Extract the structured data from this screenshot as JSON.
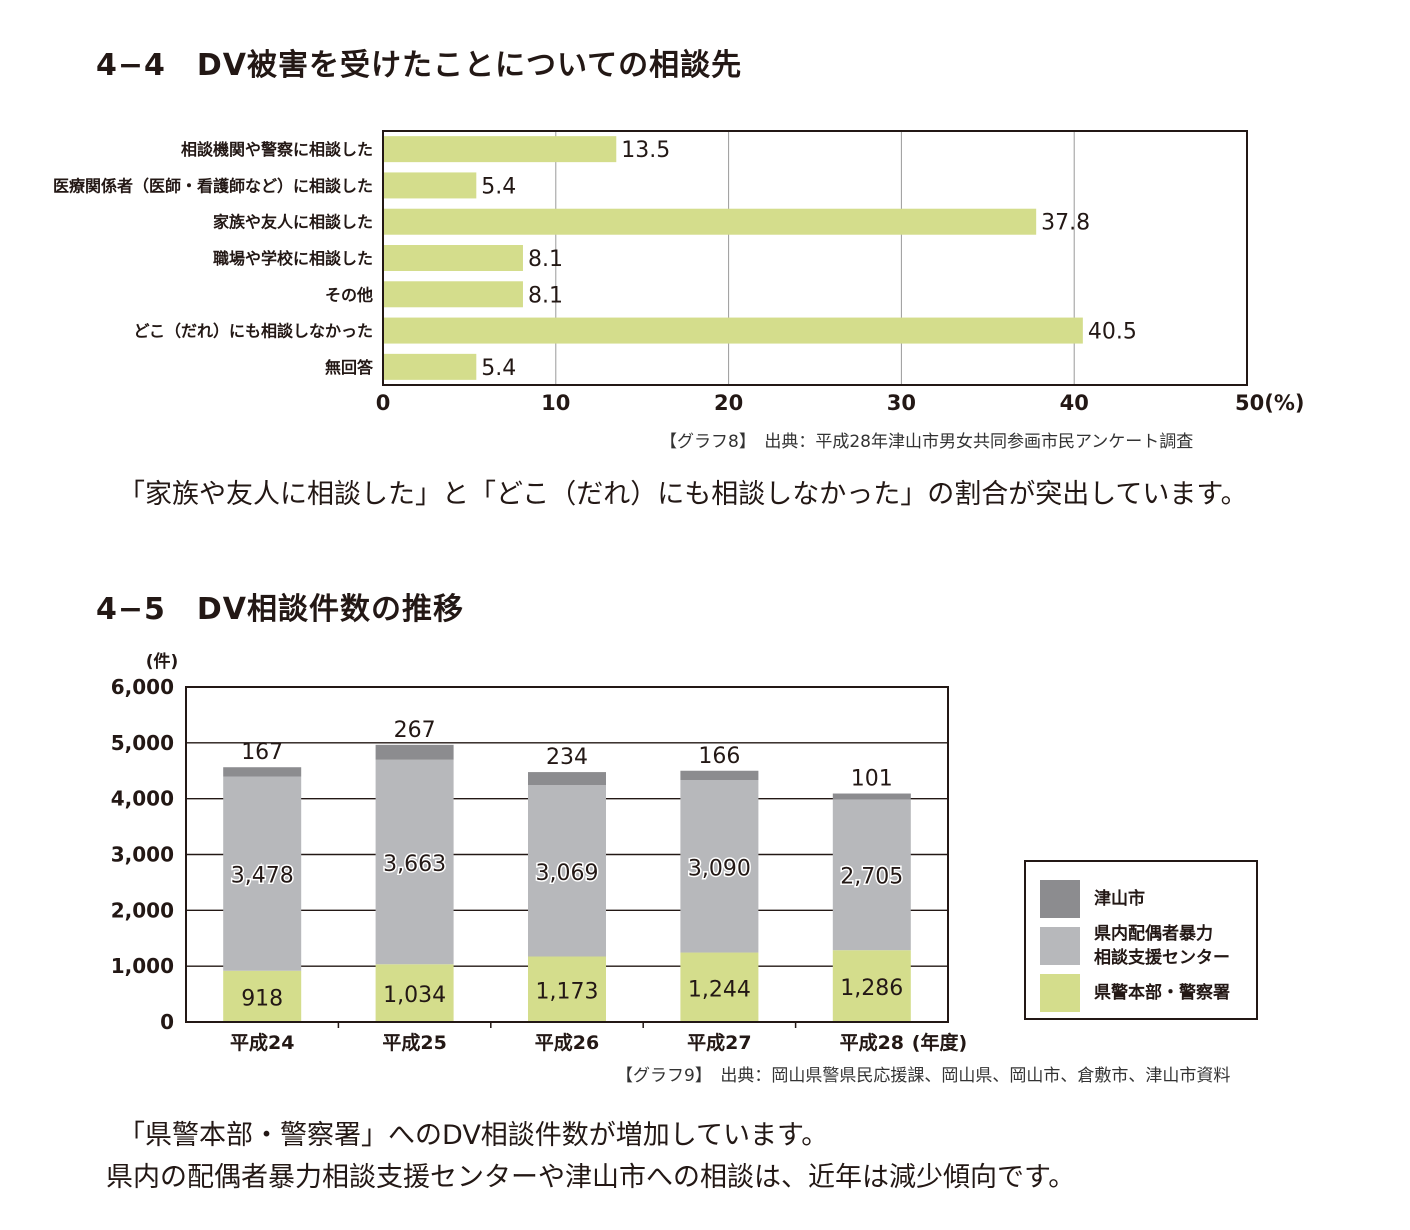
{
  "section1": {
    "title": "4−4　DV被害を受けたことについての相談先",
    "source": "【グラフ8】　出典：平成28年津山市男女共同参画市民アンケート調査",
    "comment": "「家族や友人に相談した」と「どこ（だれ）にも相談しなかった」の割合が突出しています。"
  },
  "section2": {
    "title": "4−5　DV相談件数の推移",
    "source": "【グラフ9】　出典：岡山県警県民応援課、岡山県、岡山市、倉敷市、津山市資料",
    "comment1": "「県警本部・警察署」へのDV相談件数が増加しています。",
    "comment2": "県内の配偶者暴力相談支援センターや津山市への相談は、近年は減少傾向です。"
  },
  "colors": {
    "green": "#d4dd8c",
    "light_gray": "#b7b8bb",
    "dark_gray": "#8c8c8f",
    "text": "#231815"
  },
  "chart_data": [
    {
      "type": "bar",
      "orientation": "horizontal",
      "categories": [
        "相談機関や警察に相談した",
        "医療関係者（医師・看護師など）に相談した",
        "家族や友人に相談した",
        "職場や学校に相談した",
        "その他",
        "どこ（だれ）にも相談しなかった",
        "無回答"
      ],
      "values": [
        13.5,
        5.4,
        37.8,
        8.1,
        8.1,
        40.5,
        5.4
      ],
      "value_labels": [
        "13.5",
        "5.4",
        "37.8",
        "8.1",
        "8.1",
        "40.5",
        "5.4"
      ],
      "xlim": [
        0,
        50
      ],
      "x_ticks": [
        "0",
        "10",
        "20",
        "30",
        "40",
        "50(%)"
      ],
      "grid": true
    },
    {
      "type": "bar",
      "stacked": true,
      "categories": [
        "平成24",
        "平成25",
        "平成26",
        "平成27",
        "平成28"
      ],
      "x_unit": "(年度)",
      "y_unit": "(件)",
      "ylim": [
        0,
        6000
      ],
      "y_ticks": [
        "0",
        "1,000",
        "2,000",
        "3,000",
        "4,000",
        "5,000",
        "6,000"
      ],
      "grid": true,
      "legend_position": "right",
      "series": [
        {
          "name": "県警本部・警察署",
          "values": [
            918,
            1034,
            1173,
            1244,
            1286
          ],
          "labels": [
            "918",
            "1,034",
            "1,173",
            "1,244",
            "1,286"
          ],
          "color": "#d4dd8c"
        },
        {
          "name": "県内配偶者暴力\n相談支援センター",
          "values": [
            3478,
            3663,
            3069,
            3090,
            2705
          ],
          "labels": [
            "3,478",
            "3,663",
            "3,069",
            "3,090",
            "2,705"
          ],
          "color": "#b7b8bb"
        },
        {
          "name": "津山市",
          "values": [
            167,
            267,
            234,
            166,
            101
          ],
          "labels": [
            "167",
            "267",
            "234",
            "166",
            "101"
          ],
          "color": "#8c8c8f"
        }
      ]
    }
  ]
}
